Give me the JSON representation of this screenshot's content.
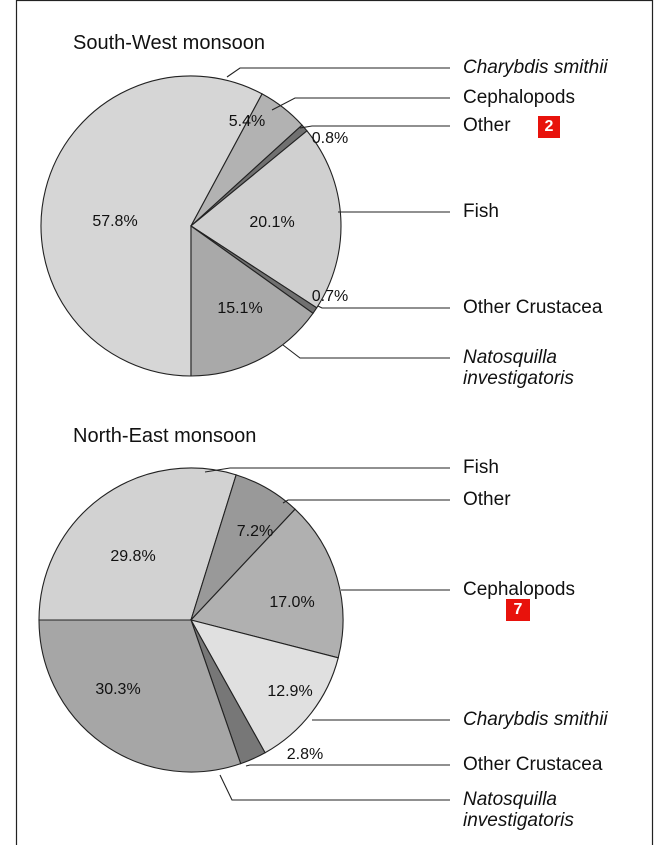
{
  "chart_data": [
    {
      "type": "pie",
      "title": "South-West monsoon",
      "categories": [
        "Charybdis smithii",
        "Cephalopods",
        "Other",
        "Fish",
        "Other Crustacea",
        "Natosquilla investigatoris"
      ],
      "values": [
        57.8,
        5.4,
        0.8,
        20.1,
        0.7,
        15.1
      ],
      "value_labels": [
        "57.8%",
        "5.4%",
        "0.8%",
        "20.1%",
        "0.7%",
        "15.1%"
      ],
      "colors": [
        "#d6d6d6",
        "#b2b2b2",
        "#707070",
        "#d0d0d0",
        "#707070",
        "#a9a9a9"
      ],
      "badge": "2"
    },
    {
      "type": "pie",
      "title": "North-East monsoon",
      "categories": [
        "Fish",
        "Other",
        "Cephalopods",
        "Charybdis smithii",
        "Other Crustacea",
        "Natosquilla investigatoris"
      ],
      "values": [
        29.8,
        7.2,
        17.0,
        12.9,
        2.8,
        30.3
      ],
      "value_labels": [
        "29.8%",
        "7.2%",
        "17.0%",
        "12.9%",
        "2.8%",
        "30.3%"
      ],
      "colors": [
        "#d2d2d2",
        "#999999",
        "#b0b0b0",
        "#e0e0e0",
        "#777777",
        "#a6a6a6"
      ],
      "badge": "7"
    }
  ]
}
